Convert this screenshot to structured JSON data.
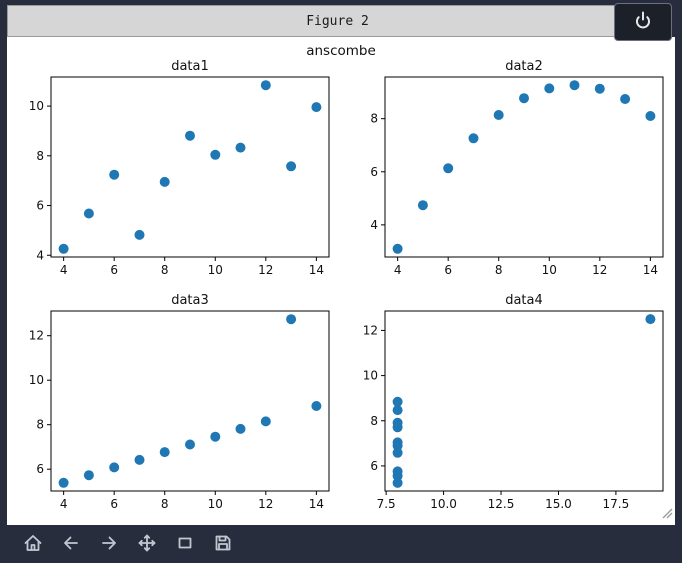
{
  "window": {
    "title": "Figure 2"
  },
  "figure": {
    "suptitle": "anscombe"
  },
  "colors": {
    "marker": "#1f77b4",
    "titlebar_bg": "#d6d6d6",
    "window_bg": "#282d3d",
    "canvas_bg": "#ffffff",
    "toolbar_icon": "#c2c8d2"
  },
  "toolbar": {
    "icons": [
      "home-icon",
      "back-icon",
      "forward-icon",
      "pan-icon",
      "zoom-rect-icon",
      "save-icon"
    ]
  },
  "chart_data": [
    {
      "type": "scatter",
      "title": "data1",
      "x": [
        10,
        8,
        13,
        9,
        11,
        14,
        6,
        4,
        12,
        7,
        5
      ],
      "y": [
        8.04,
        6.95,
        7.58,
        8.81,
        8.33,
        9.96,
        7.24,
        4.26,
        10.84,
        4.82,
        5.68
      ],
      "xlim": [
        3.5,
        14.5
      ],
      "ylim": [
        3.93,
        11.17
      ],
      "xticks": [
        "4",
        "6",
        "8",
        "10",
        "12",
        "14"
      ],
      "yticks": [
        "4",
        "6",
        "8",
        "10"
      ],
      "grid": false,
      "legend": null
    },
    {
      "type": "scatter",
      "title": "data2",
      "x": [
        10,
        8,
        13,
        9,
        11,
        14,
        6,
        4,
        12,
        7,
        5
      ],
      "y": [
        9.14,
        8.14,
        8.74,
        8.77,
        9.26,
        8.1,
        6.13,
        3.1,
        9.13,
        7.26,
        4.74
      ],
      "xlim": [
        3.5,
        14.5
      ],
      "ylim": [
        2.79,
        9.57
      ],
      "xticks": [
        "4",
        "6",
        "8",
        "10",
        "12",
        "14"
      ],
      "yticks": [
        "4",
        "6",
        "8"
      ],
      "grid": false,
      "legend": null
    },
    {
      "type": "scatter",
      "title": "data3",
      "x": [
        10,
        8,
        13,
        9,
        11,
        14,
        6,
        4,
        12,
        7,
        5
      ],
      "y": [
        7.46,
        6.77,
        12.74,
        7.11,
        7.81,
        8.84,
        6.08,
        5.39,
        8.15,
        6.42,
        5.73
      ],
      "xlim": [
        3.5,
        14.5
      ],
      "ylim": [
        5.02,
        13.11
      ],
      "xticks": [
        "4",
        "6",
        "8",
        "10",
        "12",
        "14"
      ],
      "yticks": [
        "6",
        "8",
        "10",
        "12"
      ],
      "grid": false,
      "legend": null
    },
    {
      "type": "scatter",
      "title": "data4",
      "x": [
        8,
        8,
        8,
        8,
        8,
        8,
        8,
        19,
        8,
        8,
        8
      ],
      "y": [
        6.58,
        5.76,
        7.71,
        8.84,
        8.47,
        7.04,
        5.25,
        12.5,
        5.56,
        7.91,
        6.89
      ],
      "xlim": [
        7.45,
        19.55
      ],
      "ylim": [
        4.89,
        12.86
      ],
      "xticks": [
        "7.5",
        "10.0",
        "12.5",
        "15.0",
        "17.5"
      ],
      "yticks": [
        "6",
        "8",
        "10",
        "12"
      ],
      "grid": false,
      "legend": null
    }
  ]
}
